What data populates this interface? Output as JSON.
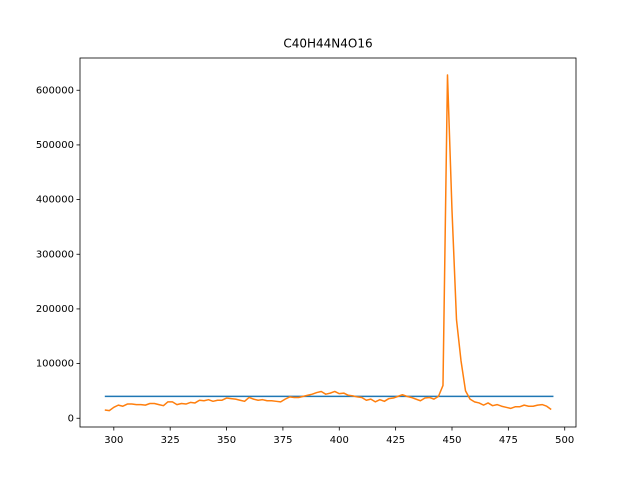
{
  "chart_data": {
    "type": "line",
    "title": "C40H44N4O16",
    "xlim": [
      285,
      505
    ],
    "xticks": [
      300,
      325,
      350,
      375,
      400,
      425,
      450,
      475,
      500
    ],
    "ylim": [
      -16000,
      659000
    ],
    "yticks": [
      0,
      100000,
      200000,
      300000,
      400000,
      500000,
      600000
    ],
    "series": [
      {
        "color": "#1f77b4",
        "x": [
          296,
          495
        ],
        "values": [
          40000,
          40000
        ]
      },
      {
        "color": "#ff7f0e",
        "x": [
          296,
          298,
          300,
          302,
          304,
          306,
          308,
          310,
          312,
          314,
          316,
          318,
          320,
          322,
          324,
          326,
          328,
          330,
          332,
          334,
          336,
          338,
          340,
          342,
          344,
          346,
          348,
          350,
          352,
          354,
          356,
          358,
          360,
          362,
          364,
          366,
          368,
          370,
          372,
          374,
          376,
          378,
          380,
          382,
          384,
          386,
          388,
          390,
          392,
          394,
          396,
          398,
          400,
          402,
          404,
          406,
          408,
          410,
          412,
          414,
          416,
          418,
          420,
          422,
          424,
          426,
          428,
          430,
          432,
          434,
          436,
          438,
          440,
          442,
          444,
          446,
          448,
          450,
          452,
          454,
          456,
          458,
          460,
          462,
          464,
          466,
          468,
          470,
          472,
          474,
          476,
          478,
          480,
          482,
          484,
          486,
          488,
          490,
          492,
          494
        ],
        "values": [
          15000,
          14000,
          20000,
          24000,
          22000,
          26000,
          26000,
          25000,
          25000,
          24000,
          27000,
          27000,
          25000,
          23000,
          30000,
          30000,
          25000,
          27000,
          26000,
          29000,
          28000,
          33000,
          32000,
          34000,
          31000,
          33000,
          33000,
          37000,
          36000,
          35000,
          33000,
          31000,
          38000,
          35000,
          33000,
          34000,
          32000,
          32000,
          31000,
          30000,
          35000,
          39000,
          38000,
          38000,
          40000,
          42000,
          44000,
          47000,
          49000,
          44000,
          46000,
          49000,
          45000,
          46000,
          42000,
          41000,
          39000,
          38000,
          33000,
          35000,
          30000,
          34000,
          31000,
          36000,
          37000,
          40000,
          43000,
          40000,
          38000,
          35000,
          32000,
          37000,
          38000,
          35000,
          40000,
          60000,
          628000,
          380000,
          180000,
          105000,
          50000,
          35000,
          30000,
          28000,
          24000,
          28000,
          23000,
          25000,
          22000,
          20000,
          18000,
          21000,
          21000,
          24000,
          22000,
          22000,
          24000,
          25000,
          22000,
          16000
        ]
      }
    ]
  }
}
